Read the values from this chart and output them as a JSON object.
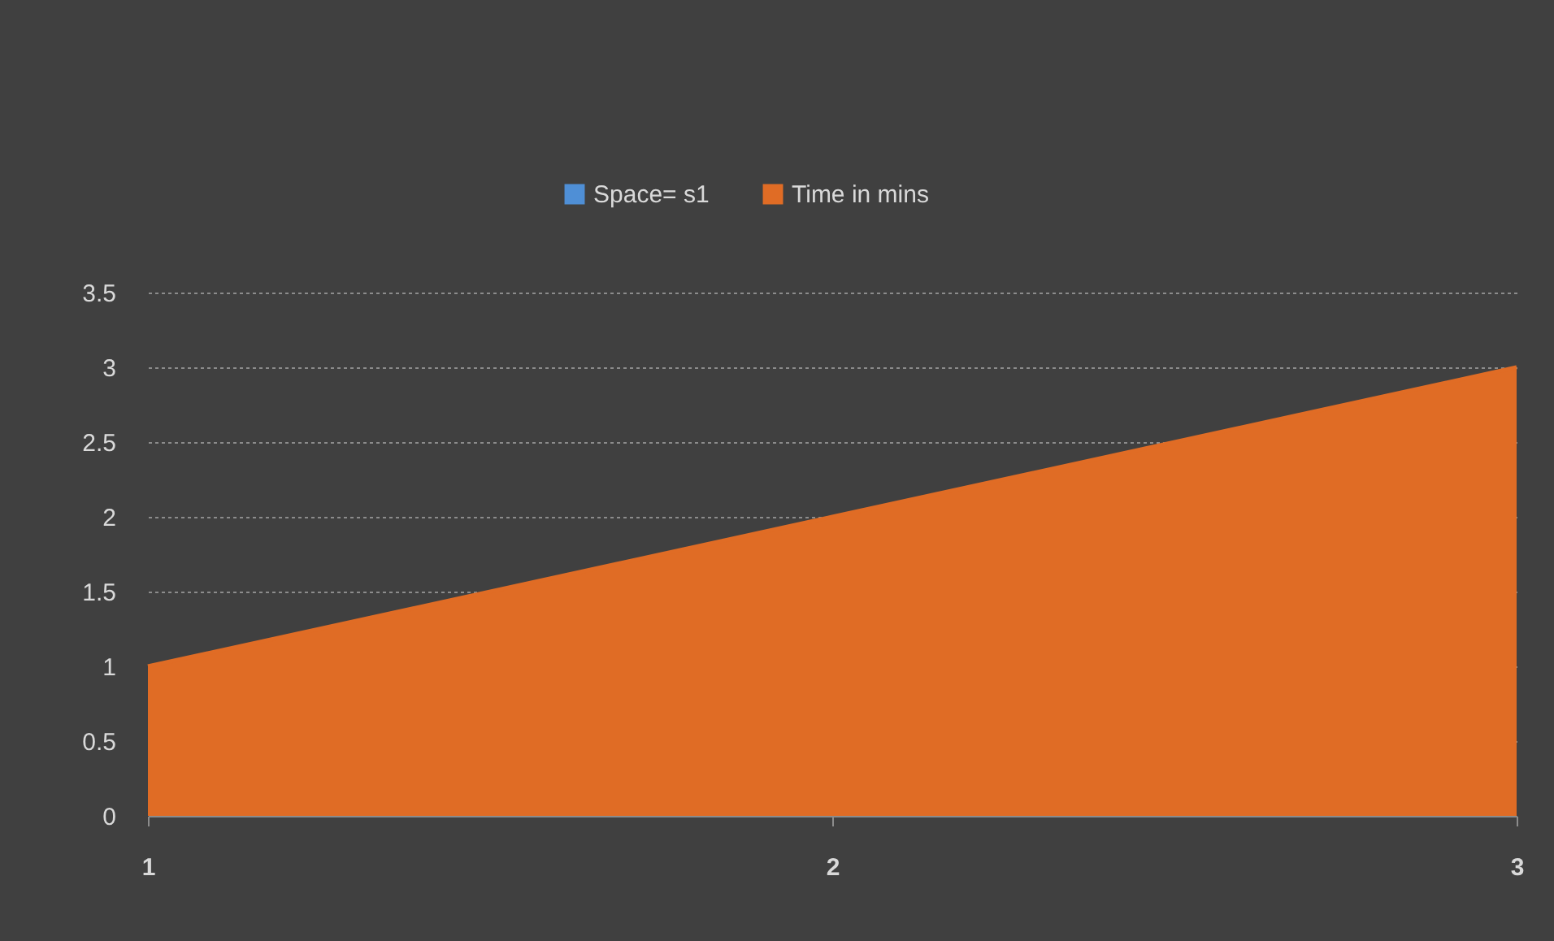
{
  "chart_data": {
    "type": "area",
    "categories": [
      "1",
      "2",
      "3"
    ],
    "series": [
      {
        "name": "Space= s1",
        "color": "#4f8fd6",
        "values": [
          null,
          null,
          null
        ]
      },
      {
        "name": "Time in mins",
        "color": "#e06c25",
        "values": [
          1,
          2,
          3
        ]
      }
    ],
    "ylim": [
      0,
      3.5
    ],
    "yticks": [
      0,
      0.5,
      1,
      1.5,
      2,
      2.5,
      3,
      3.5
    ],
    "grid": "y",
    "legend": "top"
  }
}
